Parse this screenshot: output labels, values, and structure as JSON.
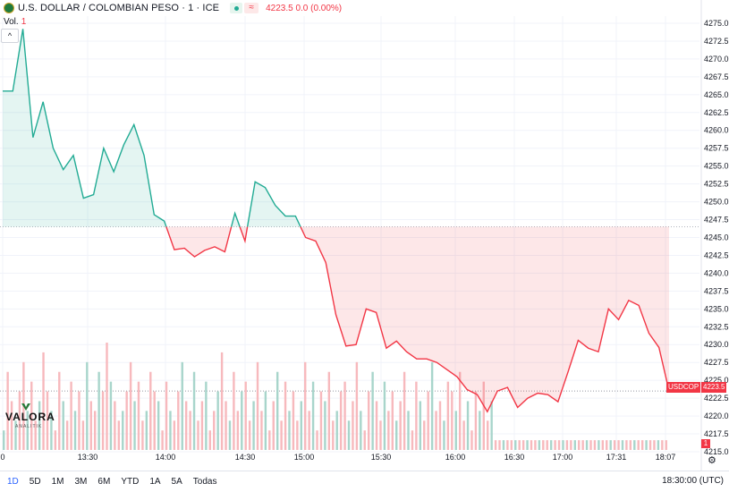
{
  "header": {
    "title": "U.S. DOLLAR / COLOMBIAN PESO · 1 · ICE",
    "price_info": "4223.5  0.0 (0.00%)",
    "status_icon": "market-open-dot",
    "wave_icon": "≈"
  },
  "volume": {
    "label": "Vol.",
    "value": "1"
  },
  "collapse_icon": "^",
  "logo": {
    "name": "VALORA",
    "sub": "ANALITIK"
  },
  "tags": {
    "symbol": "USDCOP",
    "price": "4223.5",
    "volume": "1"
  },
  "bottom": {
    "ranges": [
      "1D",
      "5D",
      "1M",
      "3M",
      "6M",
      "YTD",
      "1A",
      "5A",
      "Todas"
    ],
    "active_range": "1D",
    "timestamp": "18:30:00 (UTC)",
    "settings_icon": "gear-icon"
  },
  "colors": {
    "up": "#22ab94",
    "down": "#f23645",
    "accent": "#2962ff"
  },
  "chart_data": {
    "type": "area",
    "title": "U.S. DOLLAR / COLOMBIAN PESO · 1 · ICE",
    "baseline": 4246.5,
    "ylim": [
      4215.0,
      4276.0
    ],
    "y_ticks": [
      "4275.0",
      "4272.5",
      "4270.0",
      "4267.5",
      "4265.0",
      "4262.5",
      "4260.0",
      "4257.5",
      "4255.0",
      "4252.5",
      "4250.0",
      "4247.5",
      "4245.0",
      "4242.5",
      "4240.0",
      "4237.5",
      "4235.0",
      "4232.5",
      "4230.0",
      "4227.5",
      "4225.0",
      "4222.5",
      "4220.0",
      "4217.5",
      "4215.0"
    ],
    "x_ticks": [
      "0",
      "13:30",
      "14:00",
      "14:30",
      "15:00",
      "15:30",
      "16:00",
      "16:30",
      "17:00",
      "17:31",
      "18:07"
    ],
    "series": [
      {
        "values": [
          4265.5,
          4265.5,
          4274.2,
          4259.0,
          4264.0,
          4257.5,
          4254.5,
          4256.5,
          4250.5,
          4251.0,
          4257.5,
          4254.2,
          4258.0,
          4260.8,
          4256.5,
          4248.2,
          4247.3,
          4243.3,
          4243.5,
          4242.3,
          4243.2,
          4243.7,
          4243.0,
          4248.4,
          4244.5,
          4252.8,
          4252.0,
          4249.5,
          4248.0,
          4248.0,
          4245.0,
          4244.5,
          4241.5,
          4234.2,
          4229.8,
          4230.0,
          4235.0,
          4234.5,
          4229.5,
          4230.5,
          4229.0,
          4228.0,
          4228.0,
          4227.5,
          4226.5,
          4225.5,
          4223.7,
          4223.0,
          4220.6,
          4223.5,
          4224.0,
          4221.2,
          4222.5,
          4223.2,
          4223.0,
          4222.0,
          4226.2,
          4230.6,
          4229.5,
          4229.0,
          4235.0,
          4233.5,
          4236.2,
          4235.5,
          4231.6,
          4229.6,
          4223.5
        ]
      }
    ],
    "volume_bars": [
      2,
      8,
      5,
      3,
      6,
      9,
      4,
      7,
      3,
      5,
      10,
      6,
      4,
      2,
      8,
      5,
      3,
      7,
      4,
      6,
      3,
      9,
      5,
      4,
      8,
      6,
      11,
      7,
      5,
      3,
      4,
      6,
      9,
      5,
      7,
      3,
      4,
      8,
      6,
      5,
      2,
      7,
      4,
      3,
      6,
      9,
      5,
      4,
      8,
      3,
      5,
      7,
      2,
      4,
      6,
      10,
      5,
      3,
      8,
      4,
      6,
      7,
      3,
      5,
      9,
      4,
      6,
      2,
      5,
      8,
      3,
      7,
      4,
      6,
      3,
      5,
      9,
      4,
      7,
      2,
      6,
      5,
      8,
      3,
      4,
      6,
      7,
      3,
      5,
      9,
      4,
      2,
      6,
      8,
      5,
      3,
      7,
      4,
      6,
      3,
      5,
      8,
      4,
      2,
      7,
      5,
      3,
      6,
      9,
      4,
      5,
      3,
      7,
      6,
      4,
      8,
      3,
      5,
      2,
      6,
      4,
      7,
      3,
      5,
      1,
      1,
      1,
      1,
      1,
      1,
      1,
      1,
      1,
      1,
      1,
      1,
      1,
      1,
      1,
      1,
      1,
      1,
      1,
      1,
      1,
      1,
      1,
      1,
      1,
      1,
      1,
      1,
      1,
      1,
      1,
      1,
      1,
      1,
      1,
      1,
      1,
      1,
      1,
      1,
      1,
      1,
      1,
      1
    ]
  }
}
